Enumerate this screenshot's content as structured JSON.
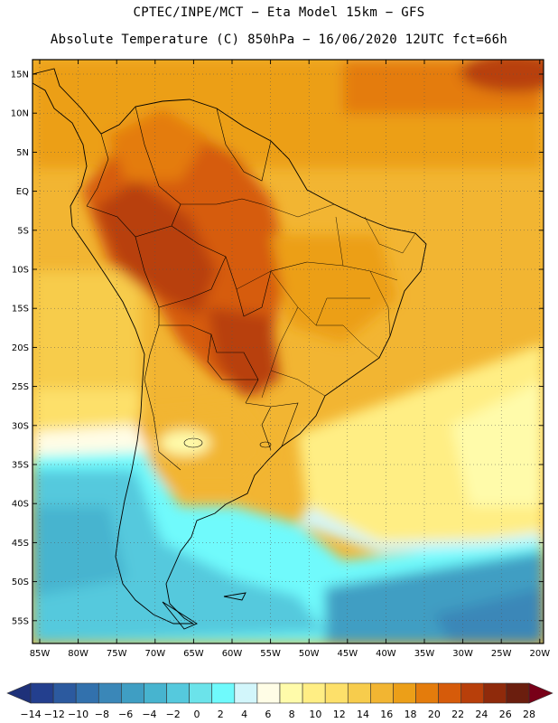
{
  "title_line1": "CPTEC/INPE/MCT −  Eta Model 15km − GFS",
  "title_line2": "Absolute Temperature (C) 850hPa − 16/06/2020 12UTC fct=66h",
  "lat_labels": [
    "15N",
    "10N",
    "5N",
    "EQ",
    "5S",
    "10S",
    "15S",
    "20S",
    "25S",
    "30S",
    "35S",
    "40S",
    "45S",
    "50S",
    "55S"
  ],
  "lon_labels": [
    "85W",
    "80W",
    "75W",
    "70W",
    "65W",
    "60W",
    "55W",
    "50W",
    "45W",
    "40W",
    "35W",
    "30W",
    "25W",
    "20W"
  ],
  "colorbar": {
    "ticks": [
      "−14",
      "−12",
      "−10",
      "−8",
      "−6",
      "−4",
      "−2",
      "0",
      "2",
      "4",
      "6",
      "8",
      "10",
      "12",
      "14",
      "16",
      "18",
      "20",
      "22",
      "24",
      "26",
      "28"
    ],
    "colors": [
      "#233f8e",
      "#2c5a9f",
      "#3271ad",
      "#3a87b8",
      "#3f9ec3",
      "#47b4cf",
      "#55c9dd",
      "#6be3ea",
      "#6ffafc",
      "#d2f6fb",
      "#fffde6",
      "#fffbaa",
      "#ffee84",
      "#fde06a",
      "#f7cc4c",
      "#f2b532",
      "#ec9f18",
      "#e47c0c",
      "#d65b0a",
      "#b83f0a",
      "#8f2a0b",
      "#6b1e0e"
    ],
    "under_color": "#1e3179",
    "over_color": "#780018"
  }
}
